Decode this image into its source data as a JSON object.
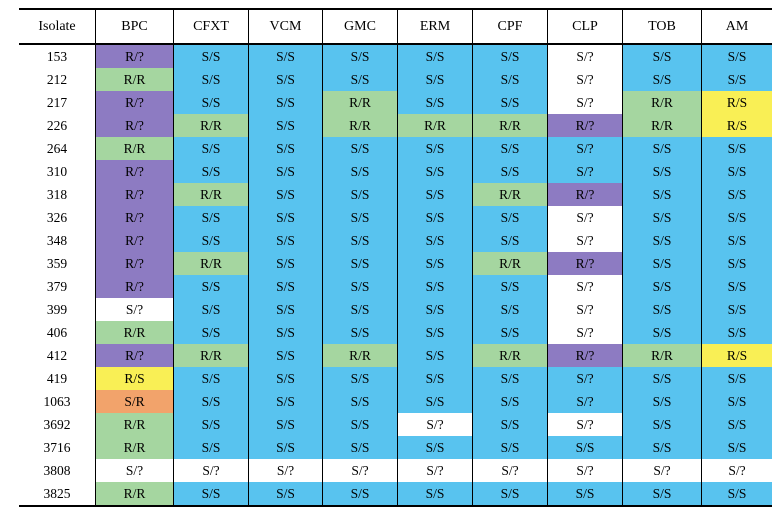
{
  "table": {
    "columns": [
      "Isolate",
      "BPC",
      "CFXT",
      "VCM",
      "GMC",
      "ERM",
      "CPF",
      "CLP",
      "TOB",
      "AM"
    ],
    "rows": [
      {
        "isolate": "153",
        "cells": [
          [
            "R/?",
            "purple"
          ],
          [
            "S/S",
            "blue"
          ],
          [
            "S/S",
            "blue"
          ],
          [
            "S/S",
            "blue"
          ],
          [
            "S/S",
            "blue"
          ],
          [
            "S/S",
            "blue"
          ],
          [
            "S/?",
            "white"
          ],
          [
            "S/S",
            "blue"
          ],
          [
            "S/S",
            "blue"
          ]
        ]
      },
      {
        "isolate": "212",
        "cells": [
          [
            "R/R",
            "green"
          ],
          [
            "S/S",
            "blue"
          ],
          [
            "S/S",
            "blue"
          ],
          [
            "S/S",
            "blue"
          ],
          [
            "S/S",
            "blue"
          ],
          [
            "S/S",
            "blue"
          ],
          [
            "S/?",
            "white"
          ],
          [
            "S/S",
            "blue"
          ],
          [
            "S/S",
            "blue"
          ]
        ]
      },
      {
        "isolate": "217",
        "cells": [
          [
            "R/?",
            "purple"
          ],
          [
            "S/S",
            "blue"
          ],
          [
            "S/S",
            "blue"
          ],
          [
            "R/R",
            "green"
          ],
          [
            "S/S",
            "blue"
          ],
          [
            "S/S",
            "blue"
          ],
          [
            "S/?",
            "white"
          ],
          [
            "R/R",
            "green"
          ],
          [
            "R/S",
            "yellow"
          ]
        ]
      },
      {
        "isolate": "226",
        "cells": [
          [
            "R/?",
            "purple"
          ],
          [
            "R/R",
            "green"
          ],
          [
            "S/S",
            "blue"
          ],
          [
            "R/R",
            "green"
          ],
          [
            "R/R",
            "green"
          ],
          [
            "R/R",
            "green"
          ],
          [
            "R/?",
            "purple"
          ],
          [
            "R/R",
            "green"
          ],
          [
            "R/S",
            "yellow"
          ]
        ]
      },
      {
        "isolate": "264",
        "cells": [
          [
            "R/R",
            "green"
          ],
          [
            "S/S",
            "blue"
          ],
          [
            "S/S",
            "blue"
          ],
          [
            "S/S",
            "blue"
          ],
          [
            "S/S",
            "blue"
          ],
          [
            "S/S",
            "blue"
          ],
          [
            "S/?",
            "blue"
          ],
          [
            "S/S",
            "blue"
          ],
          [
            "S/S",
            "blue"
          ]
        ]
      },
      {
        "isolate": "310",
        "cells": [
          [
            "R/?",
            "purple"
          ],
          [
            "S/S",
            "blue"
          ],
          [
            "S/S",
            "blue"
          ],
          [
            "S/S",
            "blue"
          ],
          [
            "S/S",
            "blue"
          ],
          [
            "S/S",
            "blue"
          ],
          [
            "S/?",
            "blue"
          ],
          [
            "S/S",
            "blue"
          ],
          [
            "S/S",
            "blue"
          ]
        ]
      },
      {
        "isolate": "318",
        "cells": [
          [
            "R/?",
            "purple"
          ],
          [
            "R/R",
            "green"
          ],
          [
            "S/S",
            "blue"
          ],
          [
            "S/S",
            "blue"
          ],
          [
            "S/S",
            "blue"
          ],
          [
            "R/R",
            "green"
          ],
          [
            "R/?",
            "purple"
          ],
          [
            "S/S",
            "blue"
          ],
          [
            "S/S",
            "blue"
          ]
        ]
      },
      {
        "isolate": "326",
        "cells": [
          [
            "R/?",
            "purple"
          ],
          [
            "S/S",
            "blue"
          ],
          [
            "S/S",
            "blue"
          ],
          [
            "S/S",
            "blue"
          ],
          [
            "S/S",
            "blue"
          ],
          [
            "S/S",
            "blue"
          ],
          [
            "S/?",
            "white"
          ],
          [
            "S/S",
            "blue"
          ],
          [
            "S/S",
            "blue"
          ]
        ]
      },
      {
        "isolate": "348",
        "cells": [
          [
            "R/?",
            "purple"
          ],
          [
            "S/S",
            "blue"
          ],
          [
            "S/S",
            "blue"
          ],
          [
            "S/S",
            "blue"
          ],
          [
            "S/S",
            "blue"
          ],
          [
            "S/S",
            "blue"
          ],
          [
            "S/?",
            "white"
          ],
          [
            "S/S",
            "blue"
          ],
          [
            "S/S",
            "blue"
          ]
        ]
      },
      {
        "isolate": "359",
        "cells": [
          [
            "R/?",
            "purple"
          ],
          [
            "R/R",
            "green"
          ],
          [
            "S/S",
            "blue"
          ],
          [
            "S/S",
            "blue"
          ],
          [
            "S/S",
            "blue"
          ],
          [
            "R/R",
            "green"
          ],
          [
            "R/?",
            "purple"
          ],
          [
            "S/S",
            "blue"
          ],
          [
            "S/S",
            "blue"
          ]
        ]
      },
      {
        "isolate": "379",
        "cells": [
          [
            "R/?",
            "purple"
          ],
          [
            "S/S",
            "blue"
          ],
          [
            "S/S",
            "blue"
          ],
          [
            "S/S",
            "blue"
          ],
          [
            "S/S",
            "blue"
          ],
          [
            "S/S",
            "blue"
          ],
          [
            "S/?",
            "white"
          ],
          [
            "S/S",
            "blue"
          ],
          [
            "S/S",
            "blue"
          ]
        ]
      },
      {
        "isolate": "399",
        "cells": [
          [
            "S/?",
            "white"
          ],
          [
            "S/S",
            "blue"
          ],
          [
            "S/S",
            "blue"
          ],
          [
            "S/S",
            "blue"
          ],
          [
            "S/S",
            "blue"
          ],
          [
            "S/S",
            "blue"
          ],
          [
            "S/?",
            "white"
          ],
          [
            "S/S",
            "blue"
          ],
          [
            "S/S",
            "blue"
          ]
        ]
      },
      {
        "isolate": "406",
        "cells": [
          [
            "R/R",
            "green"
          ],
          [
            "S/S",
            "blue"
          ],
          [
            "S/S",
            "blue"
          ],
          [
            "S/S",
            "blue"
          ],
          [
            "S/S",
            "blue"
          ],
          [
            "S/S",
            "blue"
          ],
          [
            "S/?",
            "white"
          ],
          [
            "S/S",
            "blue"
          ],
          [
            "S/S",
            "blue"
          ]
        ]
      },
      {
        "isolate": "412",
        "cells": [
          [
            "R/?",
            "purple"
          ],
          [
            "R/R",
            "green"
          ],
          [
            "S/S",
            "blue"
          ],
          [
            "R/R",
            "green"
          ],
          [
            "S/S",
            "blue"
          ],
          [
            "R/R",
            "green"
          ],
          [
            "R/?",
            "purple"
          ],
          [
            "R/R",
            "green"
          ],
          [
            "R/S",
            "yellow"
          ]
        ]
      },
      {
        "isolate": "419",
        "cells": [
          [
            "R/S",
            "yellow"
          ],
          [
            "S/S",
            "blue"
          ],
          [
            "S/S",
            "blue"
          ],
          [
            "S/S",
            "blue"
          ],
          [
            "S/S",
            "blue"
          ],
          [
            "S/S",
            "blue"
          ],
          [
            "S/?",
            "blue"
          ],
          [
            "S/S",
            "blue"
          ],
          [
            "S/S",
            "blue"
          ]
        ]
      },
      {
        "isolate": "1063",
        "cells": [
          [
            "S/R",
            "orange"
          ],
          [
            "S/S",
            "blue"
          ],
          [
            "S/S",
            "blue"
          ],
          [
            "S/S",
            "blue"
          ],
          [
            "S/S",
            "blue"
          ],
          [
            "S/S",
            "blue"
          ],
          [
            "S/?",
            "blue"
          ],
          [
            "S/S",
            "blue"
          ],
          [
            "S/S",
            "blue"
          ]
        ]
      },
      {
        "isolate": "3692",
        "cells": [
          [
            "R/R",
            "green"
          ],
          [
            "S/S",
            "blue"
          ],
          [
            "S/S",
            "blue"
          ],
          [
            "S/S",
            "blue"
          ],
          [
            "S/?",
            "white"
          ],
          [
            "S/S",
            "blue"
          ],
          [
            "S/?",
            "white"
          ],
          [
            "S/S",
            "blue"
          ],
          [
            "S/S",
            "blue"
          ]
        ]
      },
      {
        "isolate": "3716",
        "cells": [
          [
            "R/R",
            "green"
          ],
          [
            "S/S",
            "blue"
          ],
          [
            "S/S",
            "blue"
          ],
          [
            "S/S",
            "blue"
          ],
          [
            "S/S",
            "blue"
          ],
          [
            "S/S",
            "blue"
          ],
          [
            "S/S",
            "blue"
          ],
          [
            "S/S",
            "blue"
          ],
          [
            "S/S",
            "blue"
          ]
        ]
      },
      {
        "isolate": "3808",
        "cells": [
          [
            "S/?",
            "white"
          ],
          [
            "S/?",
            "white"
          ],
          [
            "S/?",
            "white"
          ],
          [
            "S/?",
            "white"
          ],
          [
            "S/?",
            "white"
          ],
          [
            "S/?",
            "white"
          ],
          [
            "S/?",
            "white"
          ],
          [
            "S/?",
            "white"
          ],
          [
            "S/?",
            "white"
          ]
        ]
      },
      {
        "isolate": "3825",
        "cells": [
          [
            "R/R",
            "green"
          ],
          [
            "S/S",
            "blue"
          ],
          [
            "S/S",
            "blue"
          ],
          [
            "S/S",
            "blue"
          ],
          [
            "S/S",
            "blue"
          ],
          [
            "S/S",
            "blue"
          ],
          [
            "S/S",
            "blue"
          ],
          [
            "S/S",
            "blue"
          ],
          [
            "S/S",
            "blue"
          ]
        ]
      }
    ]
  },
  "colors": {
    "blue": "#58c3ef",
    "green": "#a5d6a0",
    "purple": "#8d7bc2",
    "yellow": "#f9ef55",
    "orange": "#f2a36b",
    "white": "#ffffff"
  }
}
